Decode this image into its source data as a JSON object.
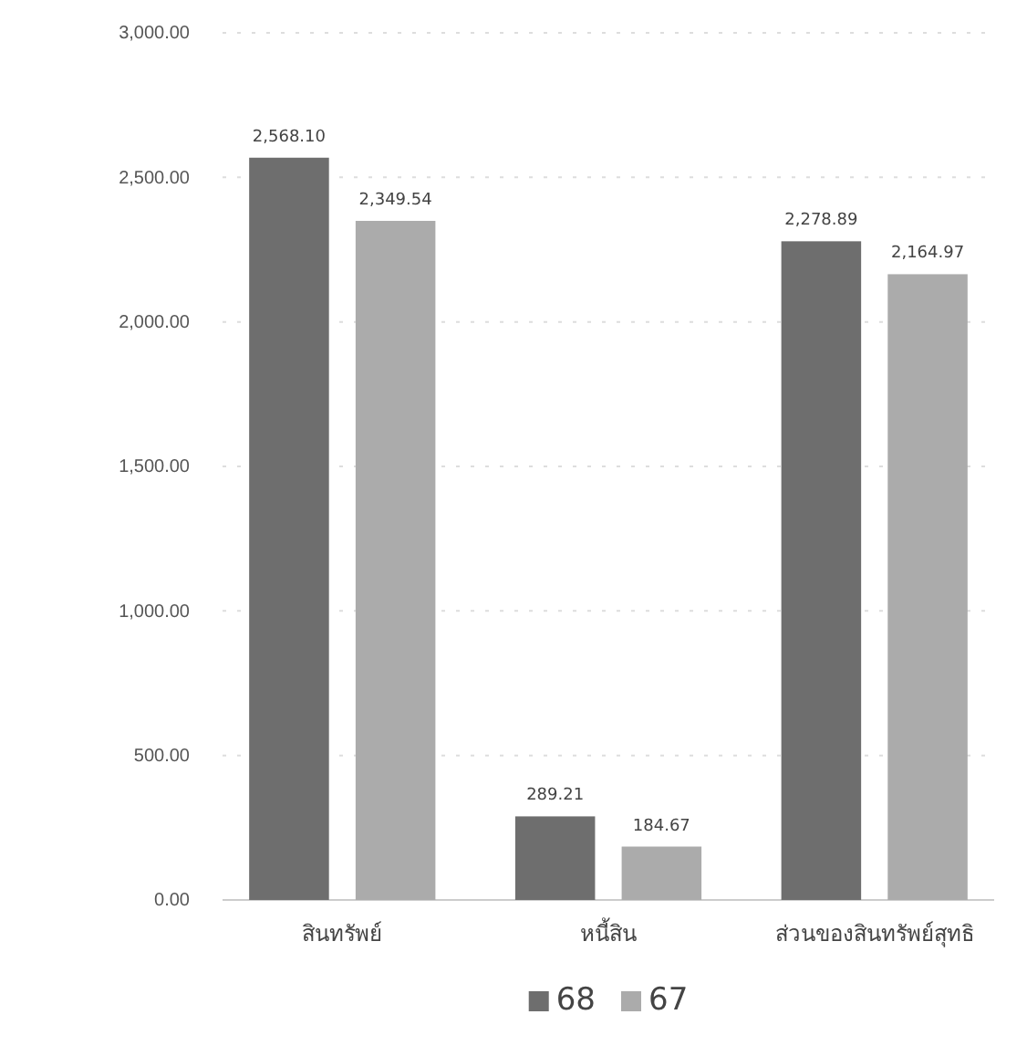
{
  "chart_data": {
    "type": "bar",
    "categories": [
      "สินทรัพย์",
      "หนี้สิน",
      "ส่วนของสินทรัพย์สุทธิ"
    ],
    "series": [
      {
        "name": "68",
        "color": "#6e6e6e",
        "values": [
          2568.1,
          289.21,
          2278.89
        ],
        "value_labels": [
          "2,568.10",
          "289.21",
          "2,278.89"
        ]
      },
      {
        "name": "67",
        "color": "#ababab",
        "values": [
          2349.54,
          184.67,
          2164.97
        ],
        "value_labels": [
          "2,349.54",
          "184.67",
          "2,164.97"
        ]
      }
    ],
    "ylim": [
      0,
      3000
    ],
    "yticks": [
      {
        "value": 0,
        "label": "0.00"
      },
      {
        "value": 500,
        "label": "500.00"
      },
      {
        "value": 1000,
        "label": "1,000.00"
      },
      {
        "value": 1500,
        "label": "1,500.00"
      },
      {
        "value": 2000,
        "label": "2,000.00"
      },
      {
        "value": 2500,
        "label": "2,500.00"
      },
      {
        "value": 3000,
        "label": "3,000.00"
      }
    ],
    "grid": "y",
    "legend": "bottom"
  }
}
